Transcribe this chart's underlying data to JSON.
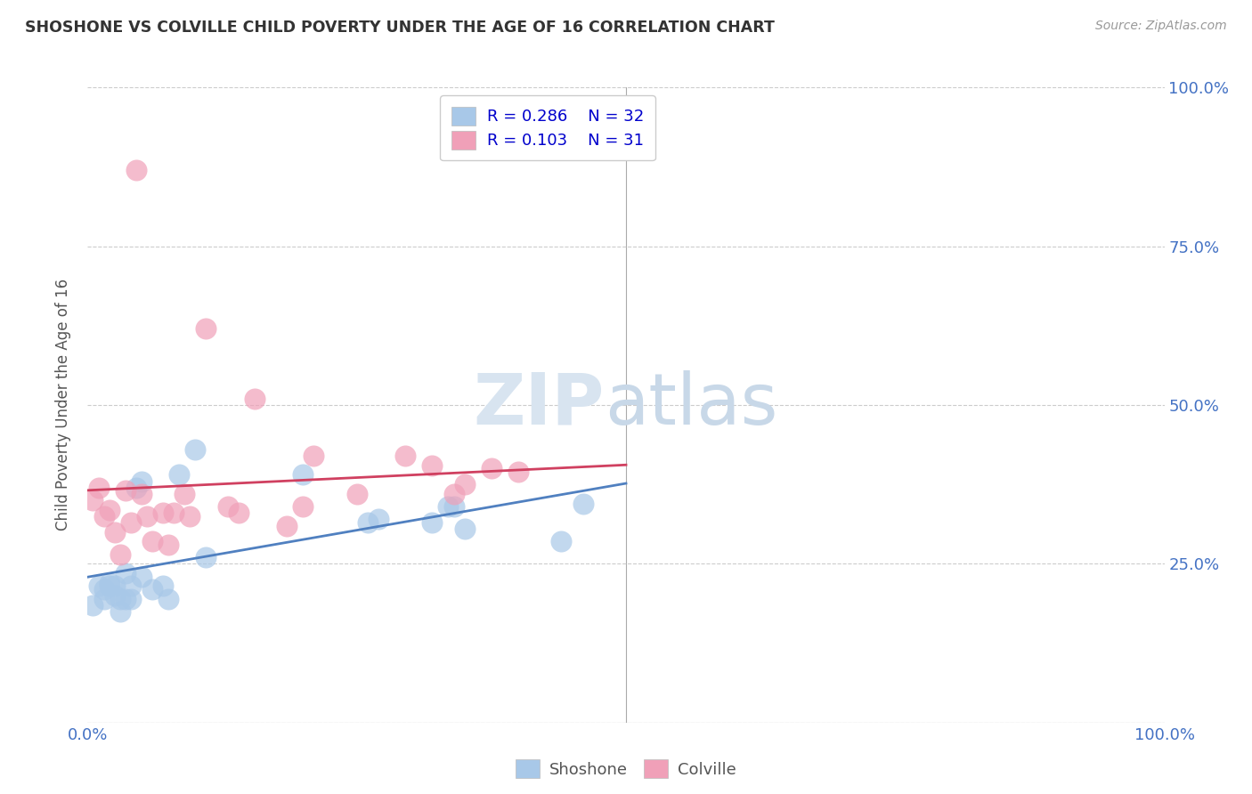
{
  "title": "SHOSHONE VS COLVILLE CHILD POVERTY UNDER THE AGE OF 16 CORRELATION CHART",
  "source_text": "Source: ZipAtlas.com",
  "ylabel": "Child Poverty Under the Age of 16",
  "xlim": [
    0.0,
    1.0
  ],
  "ylim": [
    0.0,
    1.0
  ],
  "yticks": [
    0.0,
    0.25,
    0.5,
    0.75,
    1.0
  ],
  "xticks": [
    0.0,
    1.0
  ],
  "grid_color": "#cccccc",
  "background_color": "#ffffff",
  "watermark_zip": "ZIP",
  "watermark_atlas": "atlas",
  "shoshone_color": "#a8c8e8",
  "colville_color": "#f0a0b8",
  "shoshone_line_color": "#5080c0",
  "colville_line_color": "#d04060",
  "tick_label_color": "#4472c4",
  "shoshone_R": 0.286,
  "shoshone_N": 32,
  "colville_R": 0.103,
  "colville_N": 31,
  "legend_R_color": "#0000cc",
  "legend_N_color": "#cc0000",
  "shoshone_x": [
    0.005,
    0.01,
    0.015,
    0.015,
    0.02,
    0.02,
    0.025,
    0.025,
    0.03,
    0.03,
    0.035,
    0.035,
    0.04,
    0.04,
    0.045,
    0.05,
    0.05,
    0.06,
    0.07,
    0.075,
    0.085,
    0.1,
    0.11,
    0.2,
    0.26,
    0.27,
    0.32,
    0.335,
    0.34,
    0.35,
    0.44,
    0.46
  ],
  "shoshone_y": [
    0.185,
    0.215,
    0.195,
    0.21,
    0.215,
    0.22,
    0.2,
    0.215,
    0.175,
    0.195,
    0.195,
    0.235,
    0.195,
    0.215,
    0.37,
    0.23,
    0.38,
    0.21,
    0.215,
    0.195,
    0.39,
    0.43,
    0.26,
    0.39,
    0.315,
    0.32,
    0.315,
    0.34,
    0.34,
    0.305,
    0.285,
    0.345
  ],
  "colville_x": [
    0.005,
    0.01,
    0.015,
    0.02,
    0.025,
    0.03,
    0.035,
    0.04,
    0.045,
    0.05,
    0.055,
    0.06,
    0.07,
    0.075,
    0.08,
    0.09,
    0.095,
    0.11,
    0.13,
    0.14,
    0.155,
    0.185,
    0.2,
    0.21,
    0.25,
    0.295,
    0.32,
    0.34,
    0.35,
    0.375,
    0.4
  ],
  "colville_y": [
    0.35,
    0.37,
    0.325,
    0.335,
    0.3,
    0.265,
    0.365,
    0.315,
    0.87,
    0.36,
    0.325,
    0.285,
    0.33,
    0.28,
    0.33,
    0.36,
    0.325,
    0.62,
    0.34,
    0.33,
    0.51,
    0.31,
    0.34,
    0.42,
    0.36,
    0.42,
    0.405,
    0.36,
    0.375,
    0.4,
    0.395
  ]
}
